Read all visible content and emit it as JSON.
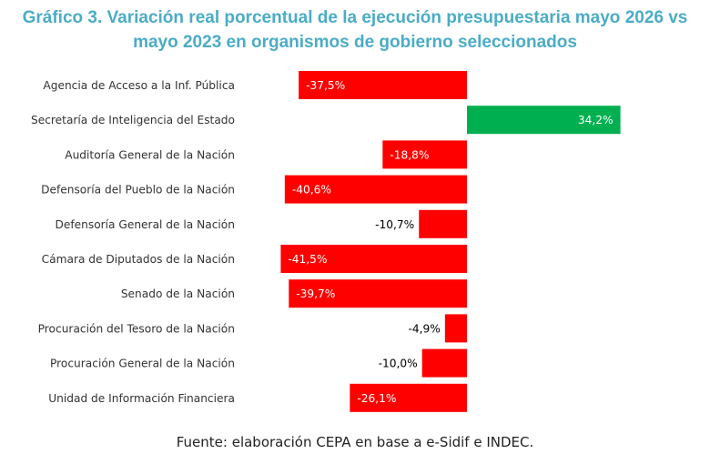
{
  "chart_data": {
    "type": "bar",
    "orientation": "horizontal",
    "title_line1": "Gráfico 3. Variación real porcentual de la ejecución presupuestaria mayo 2026 vs",
    "title_line2": "mayo 2023 en organismos de gobierno seleccionados",
    "categories": [
      "Agencia de Acceso a la Inf. Pública",
      "Secretaría de Inteligencia del Estado",
      "Auditoría General de la Nación",
      "Defensoría del Pueblo de la Nación",
      "Defensoría General de la Nación",
      "Cámara de Diputados de la Nación",
      "Senado de la Nación",
      "Procuración del Tesoro de la Nación",
      "Procuración General de la Nación",
      "Unidad de Información Financiera"
    ],
    "values": [
      -37.5,
      34.2,
      -18.8,
      -40.6,
      -10.7,
      -41.5,
      -39.7,
      -4.9,
      -10.0,
      -26.1
    ],
    "labels": [
      "-37,5%",
      "34,2%",
      "-18,8%",
      "-40,6%",
      "-10,7%",
      "-41,5%",
      "-39,7%",
      "-4,9%",
      "-10,0%",
      "-26,1%"
    ],
    "colors": {
      "negative": "#ff0000",
      "positive": "#00b050"
    },
    "grid": false,
    "legend": "none"
  },
  "source": "Fuente: elaboración CEPA en base a e-Sidif e INDEC."
}
